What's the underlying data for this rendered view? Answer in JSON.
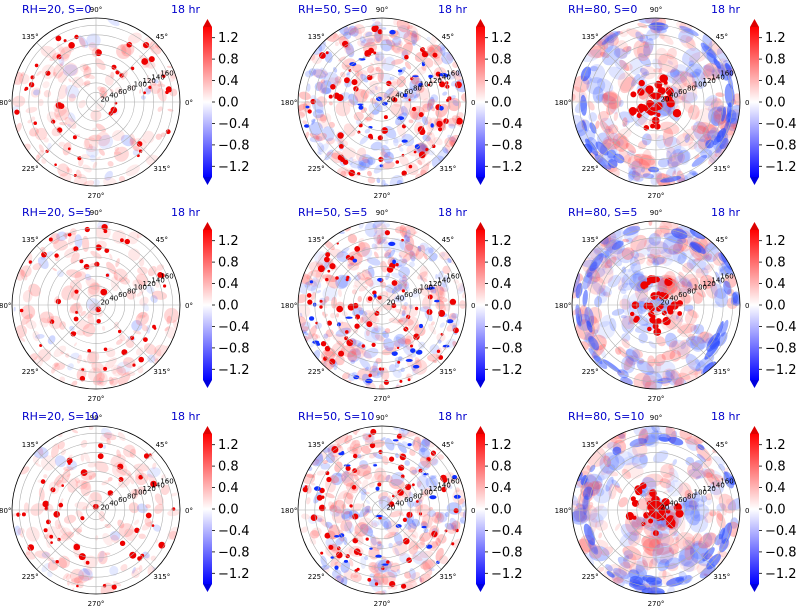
{
  "chart_data": {
    "type": "heatmap",
    "projection": "polar",
    "grid": true,
    "theta_ticks": [
      "0°",
      "45°",
      "90°",
      "135°",
      "180°",
      "225°",
      "270°",
      "315°"
    ],
    "r_ticks": [
      "20",
      "40",
      "60",
      "80",
      "100",
      "120",
      "140",
      "160"
    ],
    "rlim": [
      0,
      175
    ],
    "colormap": "bwr",
    "vlim": [
      -1.4,
      1.4
    ],
    "colorbar_ticks": [
      "1.2",
      "0.8",
      "0.4",
      "0.0",
      "−0.4",
      "−0.8",
      "−1.2"
    ],
    "colorbar_values": [
      1.2,
      0.8,
      0.4,
      0.0,
      -0.4,
      -0.8,
      -1.2
    ],
    "panels": [
      {
        "title": "RH=20, S=0",
        "time": "18 hr",
        "rh": 20,
        "shear": 0
      },
      {
        "title": "RH=50, S=0",
        "time": "18 hr",
        "rh": 50,
        "shear": 0
      },
      {
        "title": "RH=80, S=0",
        "time": "18 hr",
        "rh": 80,
        "shear": 0
      },
      {
        "title": "RH=20, S=5",
        "time": "18 hr",
        "rh": 20,
        "shear": 5
      },
      {
        "title": "RH=50, S=5",
        "time": "18 hr",
        "rh": 50,
        "shear": 5
      },
      {
        "title": "RH=80, S=5",
        "time": "18 hr",
        "rh": 80,
        "shear": 5
      },
      {
        "title": "RH=20, S=10",
        "time": "18 hr",
        "rh": 20,
        "shear": 10
      },
      {
        "title": "RH=50, S=10",
        "time": "18 hr",
        "rh": 50,
        "shear": 10
      },
      {
        "title": "RH=80, S=10",
        "time": "18 hr",
        "rh": 80,
        "shear": 10
      }
    ]
  },
  "colors": {
    "positive": "#ff0000",
    "negative": "#0000ff",
    "zero": "#ffffff",
    "title": "#0000cc",
    "grid": "#b0b0b0"
  }
}
